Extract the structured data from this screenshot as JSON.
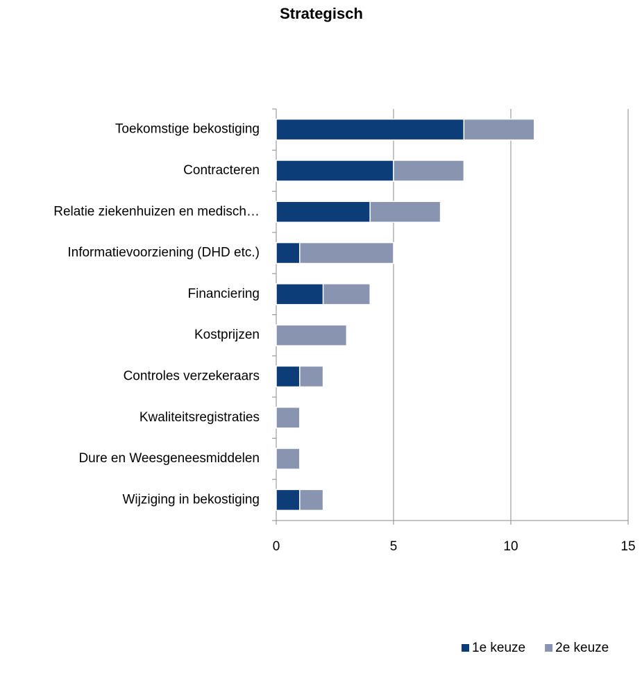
{
  "chart_data": {
    "type": "stacked_bar_horizontal",
    "title": "Strategisch",
    "categories": [
      "Toekomstige bekostiging",
      "Contracteren",
      "Relatie ziekenhuizen en medisch…",
      "Informatievoorziening (DHD etc.)",
      "Financiering",
      "Kostprijzen",
      "Controles verzekeraars",
      "Kwaliteitsregistraties",
      "Dure en Weesgeneesmiddelen",
      "Wijziging in bekostiging"
    ],
    "series": [
      {
        "name": "1e keuze",
        "color": "#0d3d78",
        "values": [
          8,
          5,
          4,
          1,
          2,
          0,
          1,
          0,
          0,
          1
        ]
      },
      {
        "name": "2e keuze",
        "color": "#8994b0",
        "values": [
          3,
          3,
          3,
          4,
          2,
          3,
          1,
          1,
          1,
          1
        ]
      }
    ],
    "xlim": [
      0,
      15
    ],
    "xticks": [
      0,
      5,
      10,
      15
    ],
    "grid": true,
    "legend": "bottom-right"
  }
}
